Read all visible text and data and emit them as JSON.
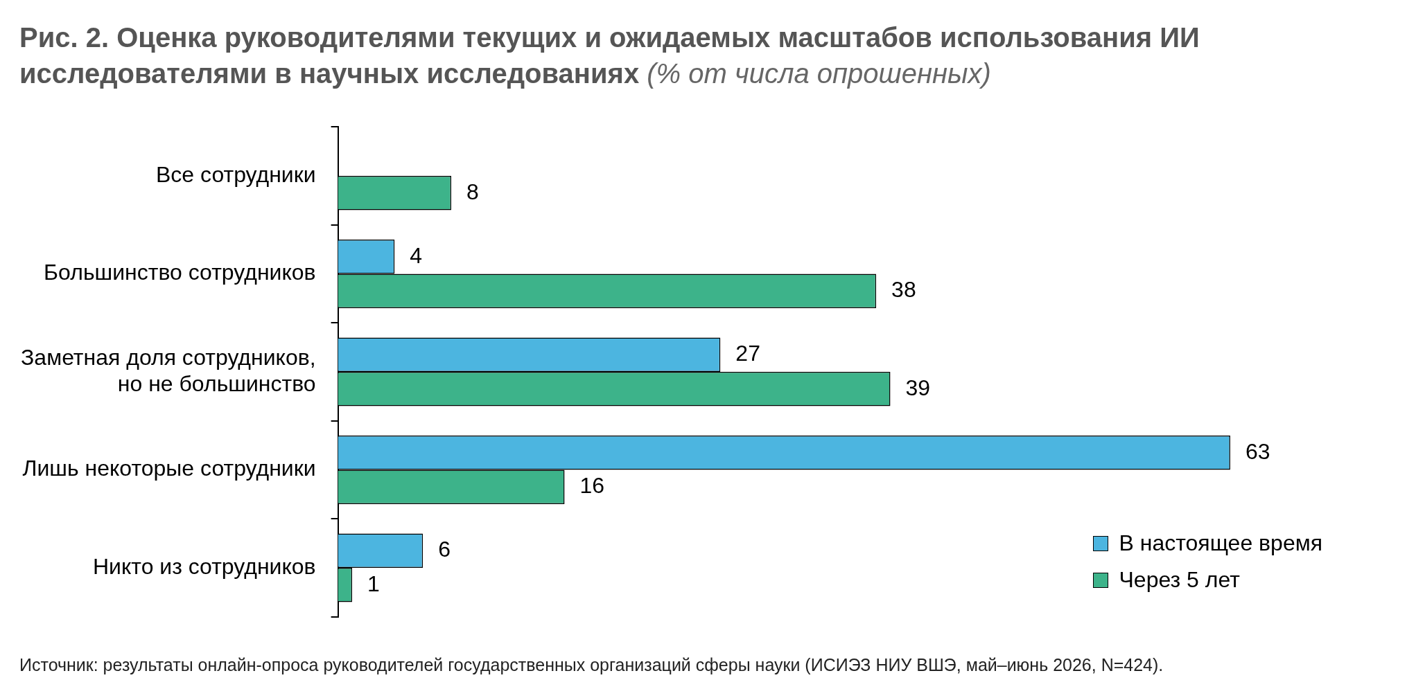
{
  "chart_data": {
    "type": "bar",
    "orientation": "horizontal",
    "title": "Рис. 2. Оценка руководителями текущих и ожидаемых масштабов использования ИИ исследователями в научных исследованиях",
    "subtitle": "(% от числа опрошенных)",
    "categories": [
      "Все сотрудники",
      "Большинство сотрудников",
      "Заметная доля сотрудников,\nно не большинство",
      "Лишь некоторые сотрудники",
      "Никто из сотрудников"
    ],
    "series": [
      {
        "name": "В настоящее время",
        "color": "#4cb5e0",
        "values": [
          null,
          4,
          27,
          63,
          6
        ]
      },
      {
        "name": "Через 5 лет",
        "color": "#3db38a",
        "values": [
          8,
          38,
          39,
          16,
          1
        ]
      }
    ],
    "data_labels": true,
    "legend": "bottom right",
    "grid": false,
    "tick_labels": "y",
    "annotations": [
      "Источник: результаты онлайн-опроса руководителей государственных организаций сферы науки (ИСИЭЗ НИУ ВШЭ, май–июнь 2026, N=424)."
    ]
  }
}
